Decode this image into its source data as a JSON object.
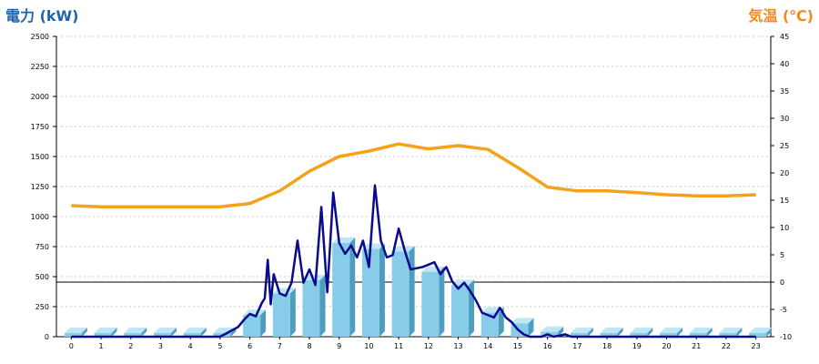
{
  "chart_data": {
    "type": "bar+line",
    "left_axis_title": "電力 (kW)",
    "right_axis_title": "気温 (℃)",
    "left_ylim": [
      0,
      2500
    ],
    "right_ylim": [
      -10,
      45
    ],
    "left_ticks": [
      0,
      250,
      500,
      750,
      1000,
      1250,
      1500,
      1750,
      2000,
      2250,
      2500
    ],
    "right_ticks": [
      -10,
      -5,
      0,
      5,
      10,
      15,
      20,
      25,
      30,
      35,
      40,
      45
    ],
    "categories": [
      "0",
      "1",
      "2",
      "3",
      "4",
      "5",
      "6",
      "7",
      "8",
      "9",
      "10",
      "11",
      "12",
      "13",
      "14",
      "15",
      "16",
      "17",
      "18",
      "19",
      "20",
      "21",
      "22",
      "23"
    ],
    "bars": [
      0,
      0,
      0,
      0,
      0,
      0,
      180,
      360,
      470,
      780,
      730,
      710,
      540,
      430,
      200,
      110,
      40,
      0,
      0,
      0,
      0,
      0,
      0,
      0
    ],
    "power_line": {
      "x": [
        0,
        1,
        2,
        3,
        4,
        5,
        5.3,
        5.6,
        5.8,
        6,
        6.2,
        6.4,
        6.5,
        6.6,
        6.7,
        6.8,
        7,
        7.2,
        7.4,
        7.6,
        7.8,
        8,
        8.2,
        8.4,
        8.6,
        8.8,
        9,
        9.2,
        9.4,
        9.6,
        9.8,
        10,
        10.2,
        10.4,
        10.6,
        10.8,
        11,
        11.2,
        11.4,
        11.6,
        11.8,
        12,
        12.2,
        12.4,
        12.6,
        12.8,
        13,
        13.2,
        13.4,
        13.6,
        13.8,
        14,
        14.2,
        14.4,
        14.6,
        14.8,
        15,
        15.2,
        15.4,
        15.6,
        15.8,
        16,
        16.2,
        16.4,
        16.6,
        16.8,
        17,
        18,
        19,
        20,
        21,
        22,
        23
      ],
      "y": [
        0,
        0,
        0,
        0,
        0,
        0,
        40,
        80,
        140,
        190,
        170,
        280,
        320,
        640,
        270,
        520,
        360,
        340,
        450,
        800,
        450,
        560,
        430,
        1080,
        370,
        1200,
        780,
        690,
        760,
        660,
        800,
        580,
        1260,
        800,
        660,
        680,
        900,
        720,
        560,
        570,
        580,
        600,
        620,
        520,
        580,
        460,
        400,
        450,
        380,
        300,
        200,
        180,
        160,
        240,
        160,
        120,
        60,
        20,
        0,
        0,
        0,
        20,
        0,
        10,
        20,
        0,
        0,
        0,
        0,
        0,
        0,
        0,
        0
      ],
      "color": "#0a0a8c"
    },
    "temperature": {
      "values": [
        14,
        13.8,
        13.8,
        13.8,
        13.8,
        13.8,
        14.4,
        16.7,
        20.3,
        23,
        24,
        25.3,
        24.4,
        25,
        24.3,
        21,
        17.4,
        16.7,
        16.7,
        16.4,
        16,
        15.8,
        15.8,
        16
      ],
      "color": "#f5a21a"
    },
    "bar_color": "#87cce8",
    "grid": true
  }
}
